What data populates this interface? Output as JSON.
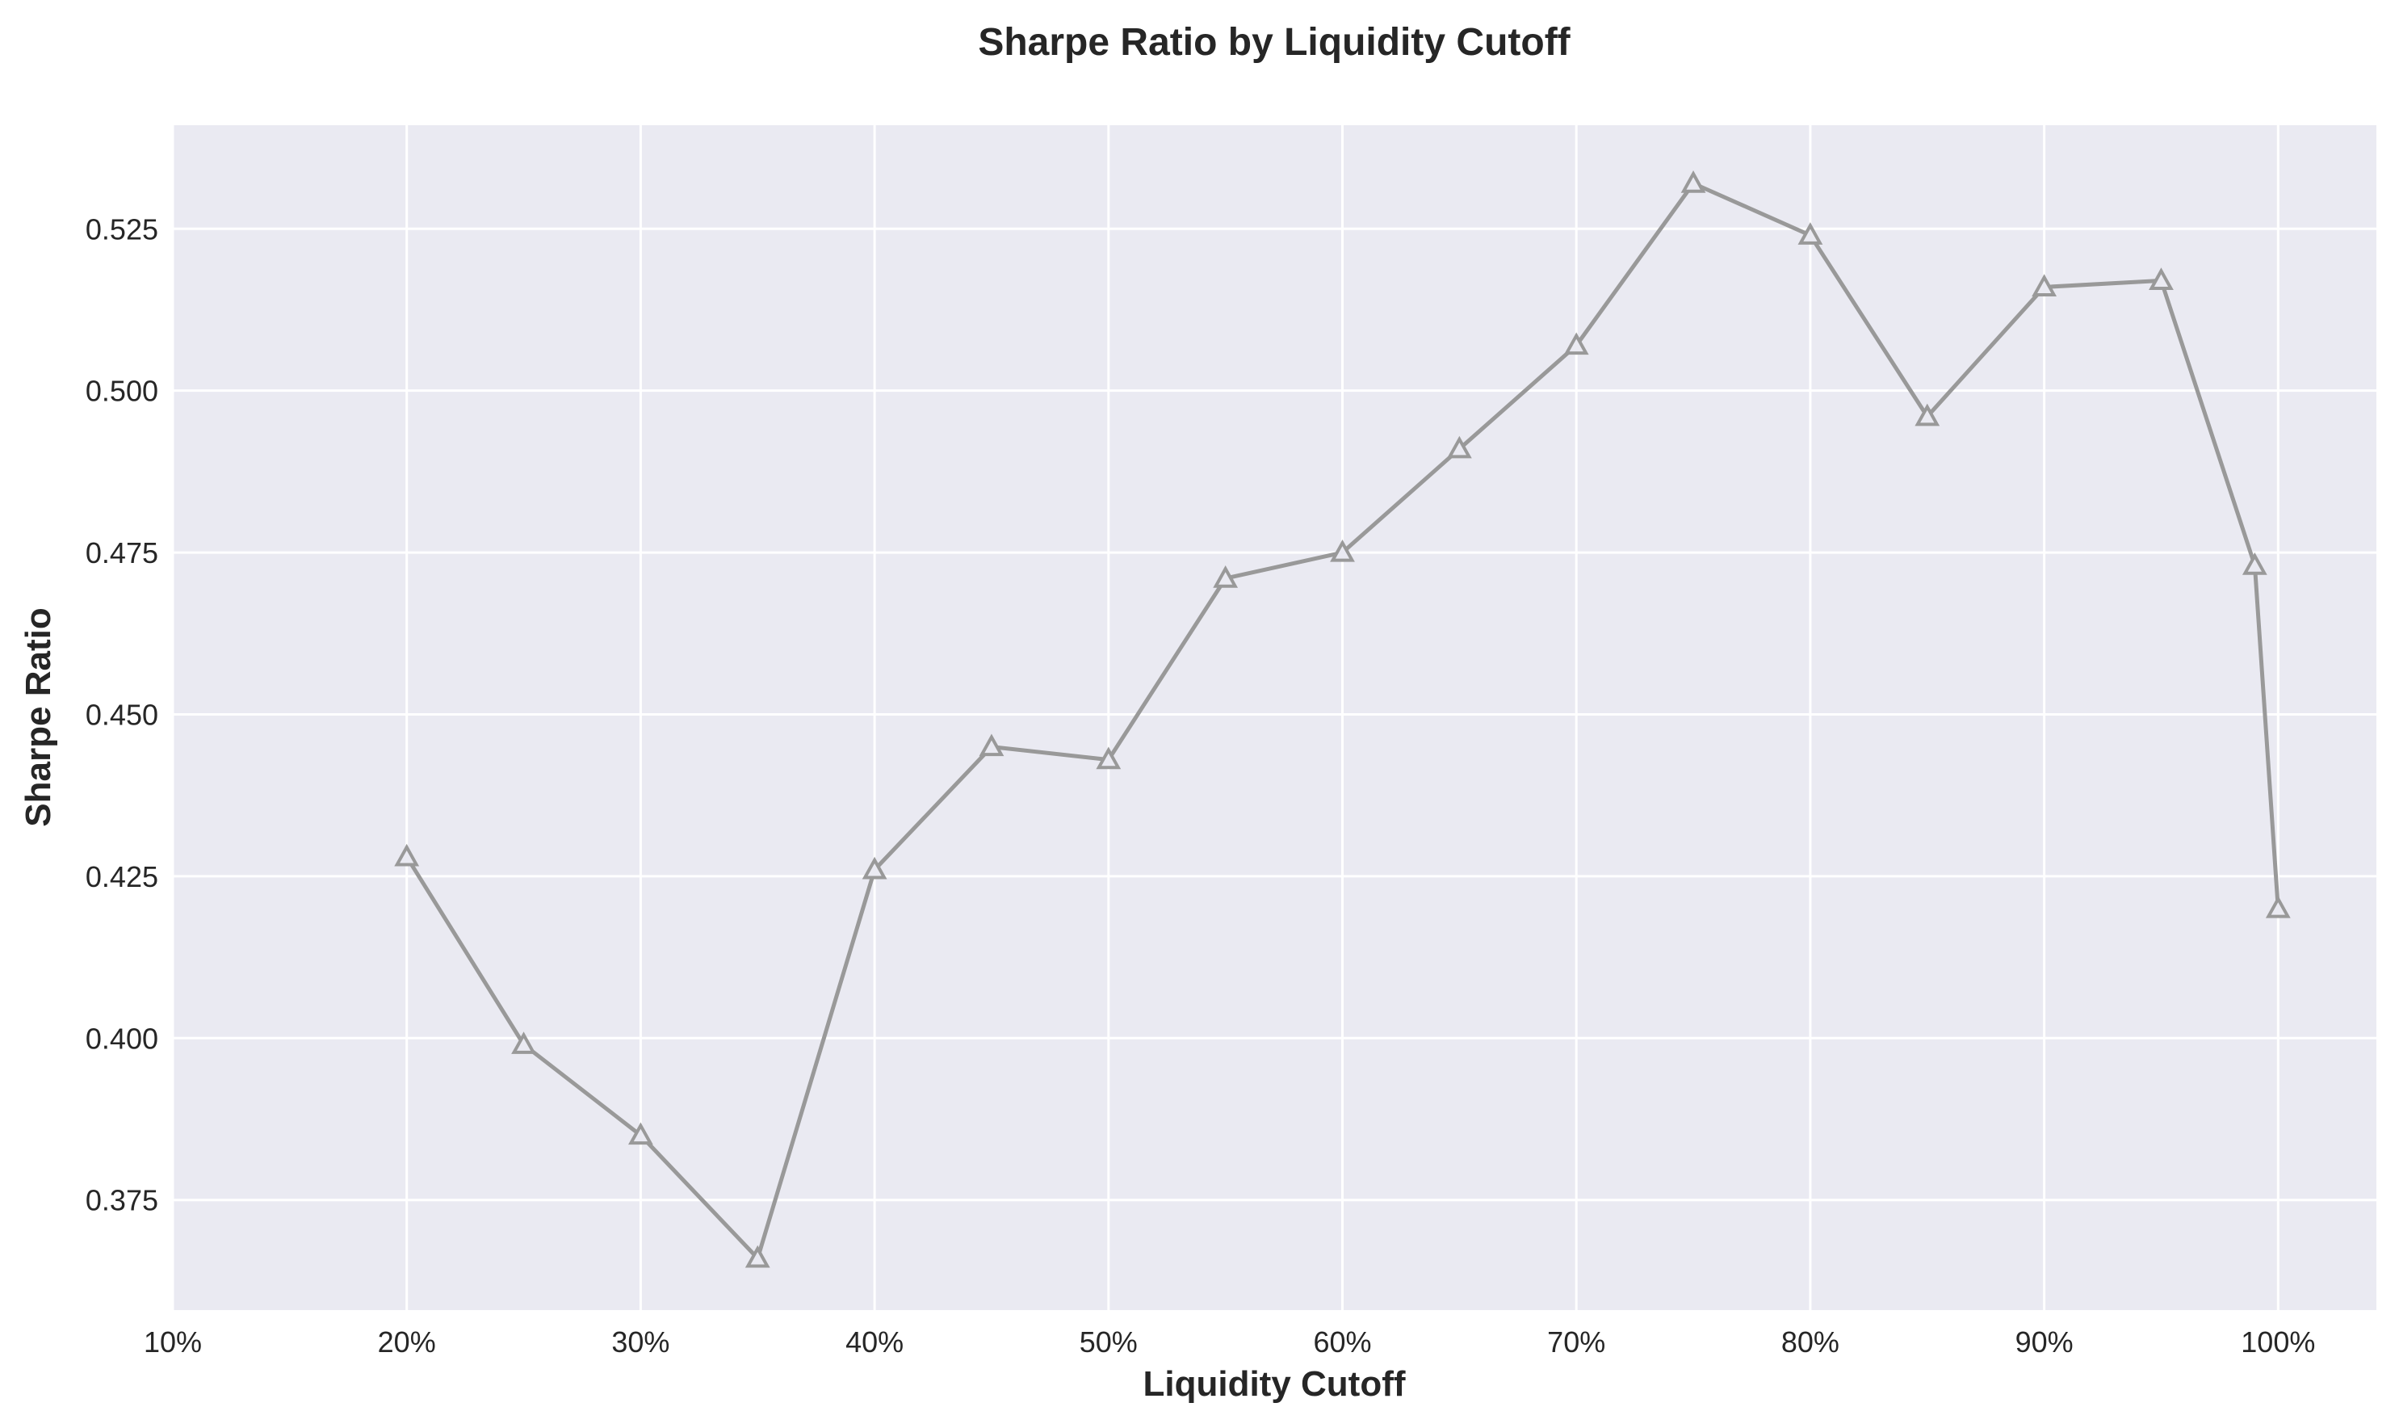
{
  "chart_data": {
    "type": "line",
    "title": "Sharpe Ratio by Liquidity Cutoff",
    "xlabel": "Liquidity Cutoff",
    "ylabel": "Sharpe Ratio",
    "xlim": [
      10,
      104.2
    ],
    "ylim": [
      0.358,
      0.541
    ],
    "x_ticks": [
      10,
      20,
      30,
      40,
      50,
      60,
      70,
      80,
      90,
      100
    ],
    "x_tick_labels": [
      "10%",
      "20%",
      "30%",
      "40%",
      "50%",
      "60%",
      "70%",
      "80%",
      "90%",
      "100%"
    ],
    "y_ticks": [
      0.375,
      0.4,
      0.425,
      0.45,
      0.475,
      0.5,
      0.525
    ],
    "y_tick_labels": [
      "0.375",
      "0.400",
      "0.425",
      "0.450",
      "0.475",
      "0.500",
      "0.525"
    ],
    "grid": true,
    "marker": "triangle-open",
    "colors": {
      "line": "#999999",
      "plot_bg": "#eaeaf2",
      "grid": "#ffffff",
      "text": "#262626"
    },
    "series": [
      {
        "x": [
          20,
          25,
          30,
          35,
          40,
          45,
          50,
          55,
          60,
          65,
          70,
          75,
          80,
          85,
          90,
          95,
          99,
          100
        ],
        "values": [
          0.428,
          0.399,
          0.385,
          0.366,
          0.426,
          0.445,
          0.443,
          0.471,
          0.475,
          0.491,
          0.507,
          0.532,
          0.524,
          0.496,
          0.516,
          0.517,
          0.473,
          0.42
        ]
      }
    ]
  }
}
